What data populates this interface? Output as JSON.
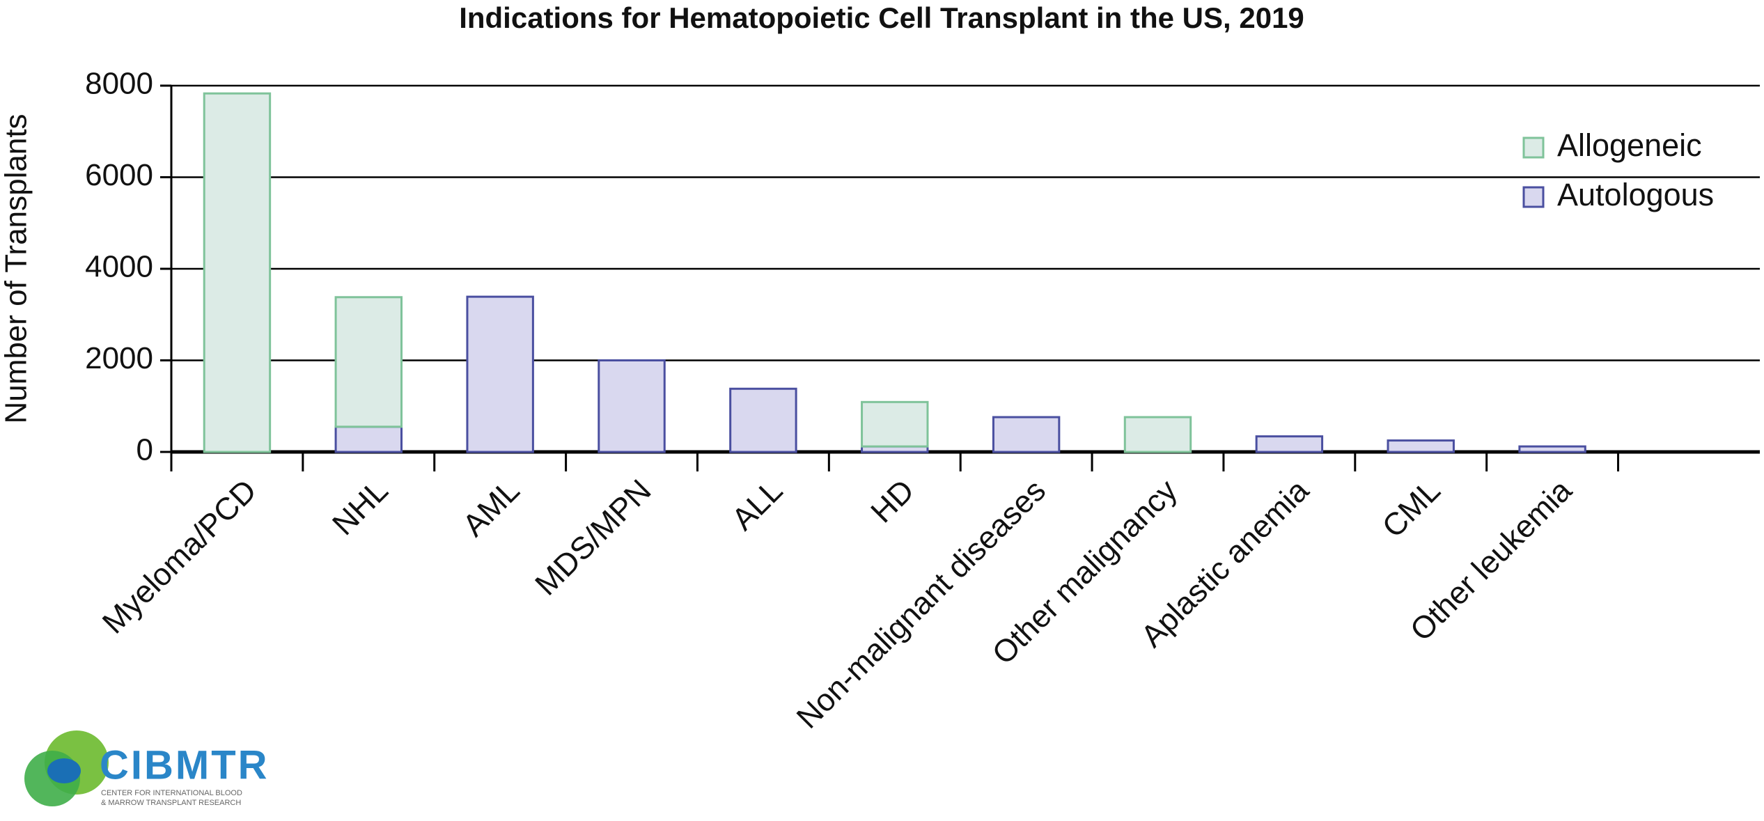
{
  "chart_data": {
    "type": "bar",
    "stacked": true,
    "title": "Indications for Hematopoietic Cell Transplant in the US, 2019",
    "y_label": "Number of Transplants",
    "categories": [
      "Myeloma/PCD",
      "NHL",
      "AML",
      "MDS/MPN",
      "ALL",
      "HD",
      "Non-malignant diseases",
      "Other malignancy",
      "Aplastic anemia",
      "CML",
      "Other leukemia"
    ],
    "series": [
      {
        "name": "Allogeneic",
        "color": "#dcebe6",
        "edgecolor": "#7fc39a",
        "values": [
          7830,
          2830,
          0,
          0,
          0,
          970,
          0,
          760,
          0,
          0,
          0
        ]
      },
      {
        "name": "Autologous",
        "color": "#d9d8ef",
        "edgecolor": "#4a4fa0",
        "values": [
          0,
          550,
          3390,
          2000,
          1380,
          120,
          760,
          0,
          340,
          250,
          120
        ]
      }
    ],
    "ylim": [
      0,
      8000
    ],
    "yticks": [
      0,
      2000,
      4000,
      6000,
      8000
    ],
    "grid": true,
    "legend": "upper right"
  },
  "logo": {
    "name": "CIBMTR",
    "tagline_1": "CENTER FOR INTERNATIONAL BLOOD",
    "tagline_2": "& MARROW TRANSPLANT RESEARCH"
  }
}
